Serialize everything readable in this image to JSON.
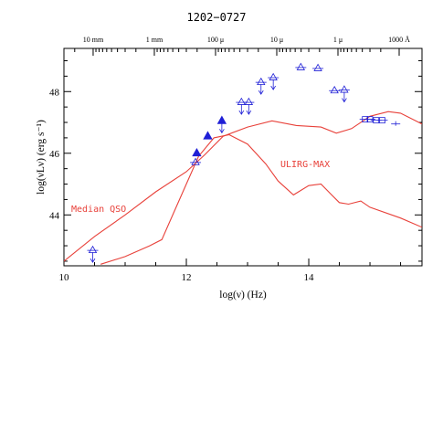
{
  "chart_data": {
    "type": "scatter",
    "title": "1202−0727",
    "xlabel": "log(ν)  (Hz)",
    "ylabel": "log(νLν)  (erg s⁻¹)",
    "xlim": [
      10,
      15.85
    ],
    "ylim": [
      42.35,
      49.4
    ],
    "x_ticks": [
      "10",
      "12",
      "14"
    ],
    "y_ticks": [
      "44",
      "46",
      "48"
    ],
    "top_axis_labels": [
      "10 mm",
      "1 mm",
      "100 μ",
      "10 μ",
      "1 μ",
      "1000 Å"
    ],
    "top_axis_log_nu": [
      10.477,
      11.477,
      12.477,
      13.477,
      14.477,
      15.477
    ],
    "colors": {
      "model": "#e8413a",
      "data": "#1f1fd6",
      "axis": "#000000"
    },
    "models": [
      {
        "name": "Median QSO",
        "x": [
          10.0,
          10.5,
          11.0,
          11.5,
          12.0,
          12.3,
          12.6,
          13.0,
          13.4,
          13.8,
          14.2,
          14.45,
          14.7,
          15.0,
          15.3,
          15.5,
          15.85
        ],
        "y": [
          42.5,
          43.3,
          44.0,
          44.75,
          45.4,
          45.95,
          46.55,
          46.85,
          47.05,
          46.9,
          46.85,
          46.65,
          46.8,
          47.2,
          47.35,
          47.3,
          46.95
        ]
      },
      {
        "name": "ULIRG-MAX",
        "x": [
          10.6,
          11.0,
          11.4,
          11.6,
          11.8,
          12.0,
          12.2,
          12.45,
          12.7,
          13.0,
          13.3,
          13.5,
          13.75,
          14.0,
          14.2,
          14.35,
          14.5,
          14.65,
          14.85,
          15.0,
          15.5,
          15.85
        ],
        "y": [
          42.4,
          42.65,
          43.0,
          43.2,
          44.1,
          45.0,
          45.9,
          46.5,
          46.6,
          46.3,
          45.65,
          45.1,
          44.65,
          44.95,
          45.0,
          44.7,
          44.4,
          44.35,
          44.45,
          44.25,
          43.9,
          43.6
        ]
      }
    ],
    "points": [
      {
        "x": 10.47,
        "y": 42.85,
        "marker": "open-triangle",
        "upper_limit": true
      },
      {
        "x": 12.15,
        "y": 45.7,
        "marker": "open-triangle",
        "upper_limit": false
      },
      {
        "x": 12.17,
        "y": 46.0,
        "marker": "filled-triangle",
        "upper_limit": false
      },
      {
        "x": 12.35,
        "y": 46.55,
        "marker": "filled-triangle",
        "upper_limit": false
      },
      {
        "x": 12.58,
        "y": 47.05,
        "marker": "filled-triangle",
        "upper_limit": true
      },
      {
        "x": 12.9,
        "y": 47.65,
        "marker": "open-triangle",
        "upper_limit": true
      },
      {
        "x": 13.02,
        "y": 47.65,
        "marker": "open-triangle",
        "upper_limit": true
      },
      {
        "x": 13.22,
        "y": 48.3,
        "marker": "open-triangle",
        "upper_limit": true
      },
      {
        "x": 13.42,
        "y": 48.45,
        "marker": "open-triangle",
        "upper_limit": true
      },
      {
        "x": 13.87,
        "y": 48.78,
        "marker": "open-triangle",
        "upper_limit": false
      },
      {
        "x": 14.15,
        "y": 48.75,
        "marker": "open-triangle",
        "upper_limit": false
      },
      {
        "x": 14.42,
        "y": 48.03,
        "marker": "open-triangle",
        "upper_limit": false
      },
      {
        "x": 14.58,
        "y": 48.05,
        "marker": "open-triangle",
        "upper_limit": true
      },
      {
        "x": 14.92,
        "y": 47.1,
        "marker": "open-square",
        "upper_limit": false
      },
      {
        "x": 15.0,
        "y": 47.1,
        "marker": "open-square",
        "upper_limit": false
      },
      {
        "x": 15.1,
        "y": 47.07,
        "marker": "open-square",
        "upper_limit": false
      },
      {
        "x": 15.2,
        "y": 47.07,
        "marker": "open-square",
        "upper_limit": false
      },
      {
        "x": 15.42,
        "y": 46.95,
        "marker": "open-dash",
        "upper_limit": false
      }
    ]
  }
}
